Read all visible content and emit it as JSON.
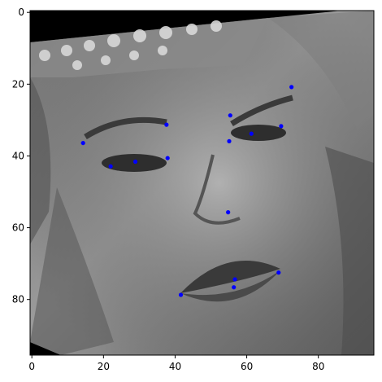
{
  "chart_data": {
    "type": "scatter",
    "title": "",
    "xlabel": "",
    "ylabel": "",
    "xlim": [
      -0.5,
      95.5
    ],
    "ylim": [
      95.5,
      -0.5
    ],
    "x_ticks": [
      0,
      20,
      40,
      60,
      80
    ],
    "y_ticks": [
      0,
      20,
      40,
      60,
      80
    ],
    "x_tick_labels": [
      "0",
      "20",
      "40",
      "60",
      "80"
    ],
    "y_tick_labels": [
      "0",
      "20",
      "40",
      "60",
      "80"
    ],
    "background_image": "grayscale-face-photo-rotated",
    "series": [
      {
        "name": "facial-keypoints",
        "color": "#0000ff",
        "points": [
          {
            "x": 72.5,
            "y": 20.8
          },
          {
            "x": 55.4,
            "y": 28.7
          },
          {
            "x": 69.6,
            "y": 31.7
          },
          {
            "x": 37.6,
            "y": 31.3
          },
          {
            "x": 61.3,
            "y": 33.8
          },
          {
            "x": 55.1,
            "y": 35.9
          },
          {
            "x": 14.3,
            "y": 36.4
          },
          {
            "x": 37.9,
            "y": 40.6
          },
          {
            "x": 28.9,
            "y": 41.6
          },
          {
            "x": 22.0,
            "y": 42.9
          },
          {
            "x": 54.8,
            "y": 55.7
          },
          {
            "x": 68.9,
            "y": 72.5
          },
          {
            "x": 56.7,
            "y": 74.4
          },
          {
            "x": 56.4,
            "y": 76.6
          },
          {
            "x": 41.6,
            "y": 78.7
          }
        ]
      }
    ]
  }
}
